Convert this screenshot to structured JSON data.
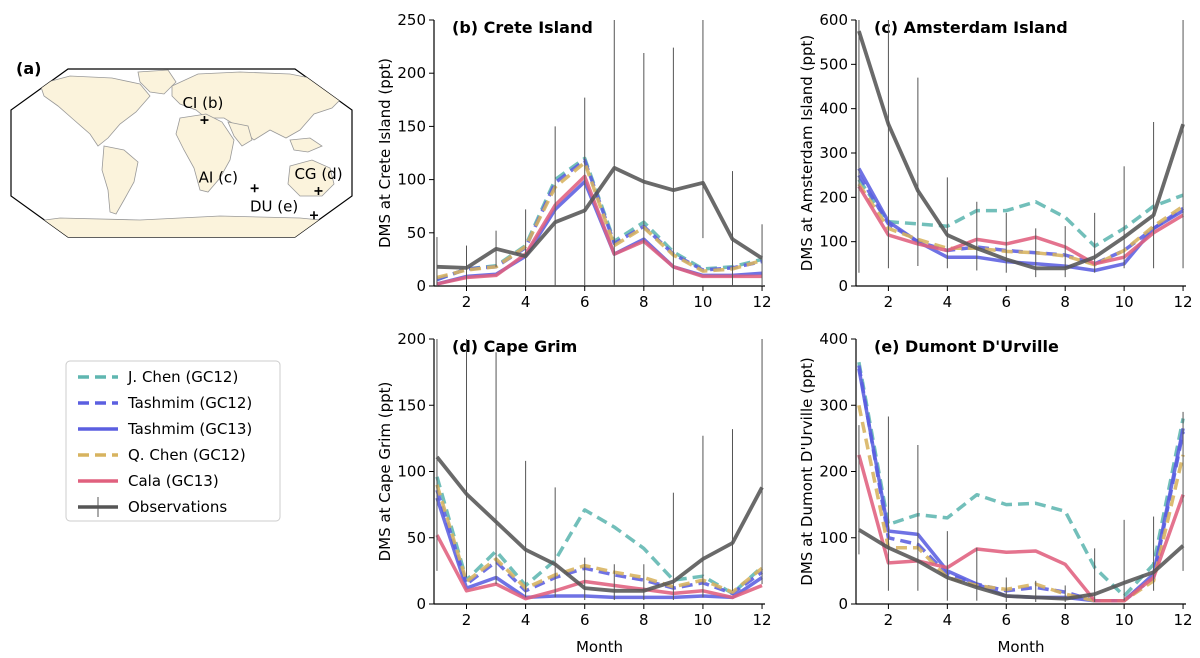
{
  "map": {
    "panel_label": "(a)",
    "sites": [
      {
        "label": "CI (b)",
        "lon": 24.7,
        "lat": 35.3
      },
      {
        "label": "AI (c)",
        "lon": 77.5,
        "lat": -37.8
      },
      {
        "label": "CG (d)",
        "lon": 144.7,
        "lat": -40.7
      },
      {
        "label": "DU (e)",
        "lon": 140.0,
        "lat": -66.7
      }
    ]
  },
  "legend": {
    "items": [
      {
        "label": "J. Chen (GC12)",
        "color": "#5fb6b0",
        "style": "dashed"
      },
      {
        "label": "Tashmim (GC12)",
        "color": "#5b5fe0",
        "style": "dashed"
      },
      {
        "label": "Tashmim (GC13)",
        "color": "#5b5fe0",
        "style": "solid"
      },
      {
        "label": "Q. Chen (GC12)",
        "color": "#d7b35f",
        "style": "dashed"
      },
      {
        "label": "Cala (GC13)",
        "color": "#e0607e",
        "style": "solid"
      },
      {
        "label": "Observations",
        "color": "#555555",
        "style": "solid-errorbar"
      }
    ]
  },
  "chart_data": [
    {
      "type": "line",
      "title": "(b) Crete Island",
      "xlabel": "",
      "ylabel": "DMS at Crete Island (ppt)",
      "xlim": [
        0.9,
        12.1
      ],
      "ylim": [
        0,
        250
      ],
      "xticks": [
        2,
        4,
        6,
        8,
        10,
        12
      ],
      "yticks": [
        0,
        50,
        100,
        150,
        200,
        250
      ],
      "x": [
        1,
        2,
        3,
        4,
        5,
        6,
        7,
        8,
        9,
        10,
        11,
        12
      ],
      "series": [
        {
          "name": "J. Chen (GC12)",
          "values": [
            6,
            16,
            19,
            38,
            100,
            120,
            42,
            60,
            32,
            16,
            18,
            25
          ]
        },
        {
          "name": "Tashmim (GC12)",
          "values": [
            6,
            16,
            18,
            36,
            97,
            118,
            40,
            56,
            30,
            15,
            17,
            23
          ]
        },
        {
          "name": "Tashmim (GC13)",
          "values": [
            2,
            9,
            11,
            28,
            72,
            98,
            30,
            44,
            18,
            10,
            10,
            12
          ]
        },
        {
          "name": "Q. Chen (GC12)",
          "values": [
            8,
            15,
            18,
            37,
            93,
            116,
            38,
            55,
            29,
            14,
            16,
            24
          ]
        },
        {
          "name": "Cala (GC13)",
          "values": [
            2,
            8,
            10,
            30,
            76,
            103,
            30,
            42,
            18,
            9,
            9,
            9
          ]
        },
        {
          "name": "Observations",
          "values": [
            18,
            17,
            35,
            28,
            60,
            71,
            111,
            98,
            90,
            97,
            44,
            26
          ],
          "err_low": [
            0,
            0,
            18,
            0,
            0,
            0,
            0,
            0,
            0,
            45,
            0,
            0
          ],
          "err_high": [
            46,
            38,
            52,
            72,
            150,
            177,
            260,
            219,
            224,
            260,
            108,
            58
          ]
        }
      ]
    },
    {
      "type": "line",
      "title": "(c) Amsterdam Island",
      "xlabel": "",
      "ylabel": "DMS at Amsterdam Island (ppt)",
      "xlim": [
        0.9,
        12.1
      ],
      "ylim": [
        0,
        600
      ],
      "xticks": [
        2,
        4,
        6,
        8,
        10,
        12
      ],
      "yticks": [
        0,
        100,
        200,
        300,
        400,
        500,
        600
      ],
      "x": [
        1,
        2,
        3,
        4,
        5,
        6,
        7,
        8,
        9,
        10,
        11,
        12
      ],
      "series": [
        {
          "name": "J. Chen (GC12)",
          "values": [
            240,
            145,
            140,
            135,
            170,
            170,
            190,
            155,
            90,
            130,
            180,
            205
          ]
        },
        {
          "name": "Tashmim (GC12)",
          "values": [
            250,
            140,
            100,
            80,
            88,
            80,
            75,
            70,
            50,
            80,
            130,
            175
          ]
        },
        {
          "name": "Tashmim (GC13)",
          "values": [
            265,
            145,
            100,
            65,
            65,
            55,
            50,
            45,
            35,
            50,
            130,
            170
          ]
        },
        {
          "name": "Q. Chen (GC12)",
          "values": [
            230,
            130,
            105,
            85,
            85,
            78,
            75,
            68,
            48,
            80,
            135,
            180
          ]
        },
        {
          "name": "Cala (GC13)",
          "values": [
            225,
            115,
            95,
            80,
            105,
            95,
            110,
            88,
            50,
            65,
            120,
            160
          ]
        },
        {
          "name": "Observations",
          "values": [
            575,
            365,
            215,
            115,
            85,
            60,
            40,
            40,
            65,
            110,
            160,
            365
          ],
          "err_low": [
            30,
            40,
            45,
            40,
            35,
            30,
            20,
            20,
            30,
            40,
            40,
            40
          ],
          "err_high": [
            600,
            600,
            470,
            245,
            190,
            165,
            130,
            135,
            165,
            270,
            370,
            600
          ]
        }
      ]
    },
    {
      "type": "line",
      "title": "(d) Cape Grim",
      "xlabel": "Month",
      "ylabel": "DMS at Cape Grim (ppt)",
      "xlim": [
        0.9,
        12.1
      ],
      "ylim": [
        0,
        200
      ],
      "xticks": [
        2,
        4,
        6,
        8,
        10,
        12
      ],
      "yticks": [
        0,
        50,
        100,
        150,
        200
      ],
      "x": [
        1,
        2,
        3,
        4,
        5,
        6,
        7,
        8,
        9,
        10,
        11,
        12
      ],
      "series": [
        {
          "name": "J. Chen (GC12)",
          "values": [
            96,
            18,
            40,
            14,
            33,
            71,
            58,
            42,
            18,
            21,
            8,
            28
          ]
        },
        {
          "name": "Tashmim (GC12)",
          "values": [
            86,
            15,
            32,
            10,
            20,
            27,
            22,
            18,
            12,
            16,
            8,
            24
          ]
        },
        {
          "name": "Tashmim (GC13)",
          "values": [
            80,
            12,
            20,
            5,
            6,
            6,
            5,
            5,
            5,
            6,
            5,
            20
          ]
        },
        {
          "name": "Q. Chen (GC12)",
          "values": [
            90,
            17,
            34,
            12,
            22,
            29,
            24,
            20,
            13,
            18,
            9,
            27
          ]
        },
        {
          "name": "Cala (GC13)",
          "values": [
            52,
            10,
            15,
            4,
            10,
            17,
            14,
            11,
            8,
            10,
            5,
            14
          ]
        },
        {
          "name": "Observations",
          "values": [
            111,
            83,
            62,
            41,
            30,
            12,
            10,
            10,
            17,
            34,
            46,
            88
          ],
          "err_low": [
            25,
            20,
            15,
            5,
            5,
            3,
            3,
            3,
            3,
            5,
            10,
            15
          ],
          "err_high": [
            200,
            200,
            190,
            108,
            88,
            35,
            30,
            30,
            84,
            127,
            132,
            200
          ]
        }
      ]
    },
    {
      "type": "line",
      "title": "(e) Dumont D'Urville",
      "xlabel": "Month",
      "ylabel": "DMS at Dumont D'Urville (ppt)",
      "xlim": [
        0.9,
        12.1
      ],
      "ylim": [
        0,
        400
      ],
      "xticks": [
        2,
        4,
        6,
        8,
        10,
        12
      ],
      "yticks": [
        0,
        100,
        200,
        300,
        400
      ],
      "x": [
        1,
        2,
        3,
        4,
        5,
        6,
        7,
        8,
        9,
        10,
        11,
        12
      ],
      "series": [
        {
          "name": "J. Chen (GC12)",
          "values": [
            365,
            120,
            135,
            130,
            165,
            150,
            152,
            140,
            55,
            12,
            60,
            280
          ]
        },
        {
          "name": "Tashmim (GC12)",
          "values": [
            360,
            100,
            90,
            45,
            30,
            20,
            25,
            18,
            5,
            5,
            40,
            260
          ]
        },
        {
          "name": "Tashmim (GC13)",
          "values": [
            355,
            110,
            105,
            50,
            30,
            12,
            10,
            10,
            5,
            5,
            45,
            265
          ]
        },
        {
          "name": "Q. Chen (GC12)",
          "values": [
            300,
            85,
            85,
            40,
            28,
            22,
            30,
            15,
            5,
            5,
            35,
            225
          ]
        },
        {
          "name": "Cala (GC13)",
          "values": [
            225,
            62,
            65,
            55,
            83,
            78,
            80,
            60,
            5,
            5,
            40,
            165
          ]
        },
        {
          "name": "Observations",
          "values": [
            112,
            85,
            65,
            40,
            25,
            12,
            10,
            8,
            15,
            32,
            48,
            88
          ],
          "err_low": [
            75,
            20,
            20,
            5,
            5,
            3,
            3,
            3,
            3,
            5,
            20,
            50
          ],
          "err_high": [
            270,
            283,
            240,
            110,
            85,
            40,
            35,
            28,
            84,
            127,
            132,
            290
          ]
        }
      ]
    }
  ]
}
